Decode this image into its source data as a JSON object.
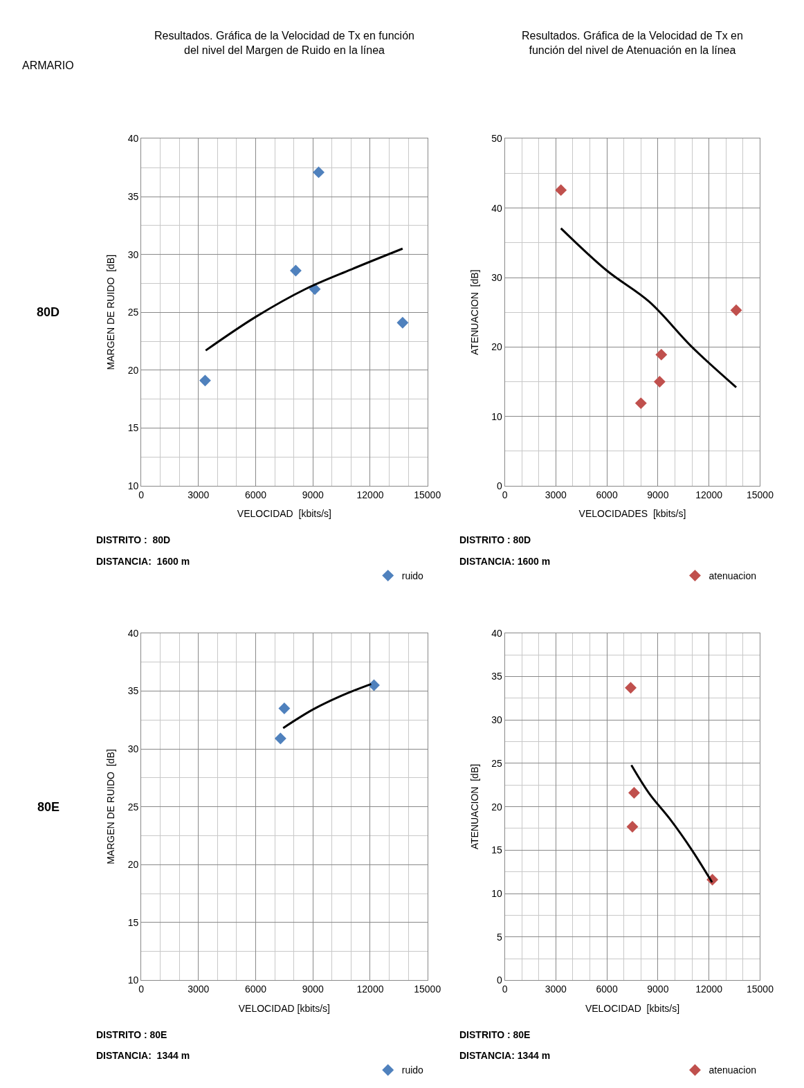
{
  "chart_data": [
    {
      "type": "scatter",
      "title": "Resultados. Gráfica de la Velocidad de Tx en función del nivel del Margen de Ruido en la línea",
      "xlabel": "VELOCIDAD  [kbits/s]",
      "ylabel": "MARGEN DE RUIDO  [dB]",
      "annotations": [
        "ARMARIO",
        "80D",
        "DISTRITO :  80D",
        "DISTANCIA:  1600 m"
      ],
      "xlim": [
        0,
        15000
      ],
      "xticks": [
        0,
        3000,
        6000,
        9000,
        12000,
        15000
      ],
      "ylim": [
        10,
        40
      ],
      "yticks": [
        10,
        15,
        20,
        25,
        30,
        35,
        40
      ],
      "grid": true,
      "legend": "bottom right",
      "series": [
        {
          "name": "ruido",
          "color": "#4f81bd",
          "marker": "diamond",
          "x": [
            9300,
            13700,
            9100,
            8100,
            3350
          ],
          "values": [
            37.1,
            24.1,
            27,
            28.6,
            19.1
          ]
        },
        {
          "type": "line",
          "color": "#000000",
          "x": [
            3380,
            6000,
            8600,
            11000,
            13700
          ],
          "values": [
            21.7,
            24.6,
            27,
            28.7,
            30.5
          ]
        }
      ]
    },
    {
      "type": "scatter",
      "title": "Resultados. Gráfica de la Velocidad de Tx en función del nivel de Atenuación en la línea",
      "xlabel": "VELOCIDADES  [kbits/s]",
      "ylabel": "ATENUACION  [dB]",
      "annotations": [
        "DISTRITO : 80D",
        "DISTANCIA: 1600 m"
      ],
      "xlim": [
        0,
        15000
      ],
      "xticks": [
        0,
        3000,
        6000,
        9000,
        12000,
        15000
      ],
      "ylim": [
        0,
        50
      ],
      "yticks": [
        0,
        10,
        20,
        30,
        40,
        50
      ],
      "grid": true,
      "legend": "bottom right",
      "series": [
        {
          "name": "atenuacion",
          "color": "#c0504d",
          "marker": "diamond",
          "x": [
            3300,
            13600,
            9200,
            9100,
            8000
          ],
          "values": [
            42.6,
            25.3,
            18.9,
            15,
            11.9
          ]
        },
        {
          "type": "line",
          "color": "#000000",
          "x": [
            3300,
            6000,
            8500,
            11000,
            13600
          ],
          "values": [
            37.1,
            31,
            26.5,
            20,
            14.2
          ]
        }
      ]
    },
    {
      "type": "scatter",
      "xlabel": "VELOCIDAD [kbits/s]",
      "ylabel": "MARGEN DE RUIDO  [dB]",
      "annotations": [
        "80E",
        "DISTRITO : 80E",
        "DISTANCIA:  1344 m"
      ],
      "xlim": [
        0,
        15000
      ],
      "xticks": [
        0,
        3000,
        6000,
        9000,
        12000,
        15000
      ],
      "ylim": [
        10,
        40
      ],
      "yticks": [
        10,
        15,
        20,
        25,
        30,
        35,
        40
      ],
      "grid": true,
      "legend": "bottom right",
      "series": [
        {
          "name": "ruido",
          "color": "#4f81bd",
          "marker": "diamond",
          "x": [
            12200,
            7500,
            7300
          ],
          "values": [
            35.5,
            33.5,
            30.9
          ]
        },
        {
          "type": "line",
          "color": "#000000",
          "x": [
            7440,
            9000,
            10500,
            12050
          ],
          "values": [
            31.8,
            33.4,
            34.6,
            35.6
          ]
        }
      ]
    },
    {
      "type": "scatter",
      "xlabel": "VELOCIDAD  [kbits/s]",
      "ylabel": "ATENUACION  [dB]",
      "annotations": [
        "DISTRITO : 80E",
        "DISTANCIA: 1344 m"
      ],
      "xlim": [
        0,
        15000
      ],
      "xticks": [
        0,
        3000,
        6000,
        9000,
        12000,
        15000
      ],
      "ylim": [
        0,
        40
      ],
      "yticks": [
        0,
        5,
        10,
        15,
        20,
        25,
        30,
        35,
        40
      ],
      "grid": true,
      "legend": "bottom right",
      "series": [
        {
          "name": "atenuacion",
          "color": "#c0504d",
          "marker": "diamond",
          "x": [
            7400,
            7600,
            7500,
            12200
          ],
          "values": [
            33.7,
            21.6,
            17.7,
            11.6
          ]
        },
        {
          "type": "line",
          "color": "#000000",
          "x": [
            7440,
            8500,
            9700,
            11000,
            12180
          ],
          "values": [
            24.8,
            21.5,
            18.6,
            15,
            11.3
          ]
        }
      ]
    }
  ]
}
